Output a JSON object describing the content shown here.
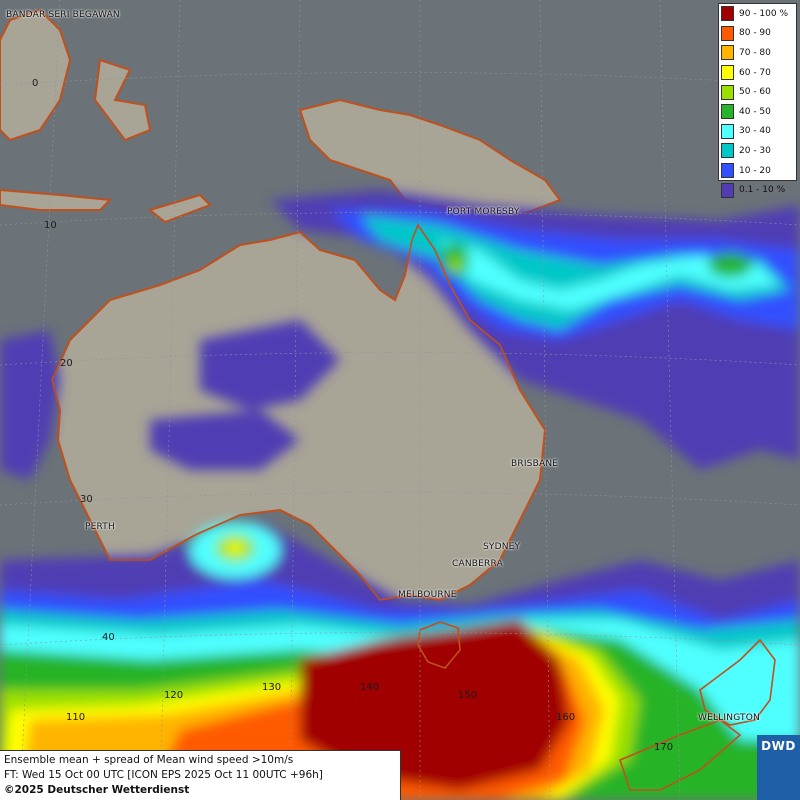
{
  "legend": {
    "items": [
      {
        "label": "90 - 100 %",
        "color": "#a00000"
      },
      {
        "label": "80 - 90",
        "color": "#ff5a00"
      },
      {
        "label": "70 - 80",
        "color": "#ffb400"
      },
      {
        "label": "60 - 70",
        "color": "#ffff00"
      },
      {
        "label": "50 - 60",
        "color": "#9be000"
      },
      {
        "label": "40 - 50",
        "color": "#28b428"
      },
      {
        "label": "30 - 40",
        "color": "#50ffff"
      },
      {
        "label": "20 - 30",
        "color": "#00c8c8"
      },
      {
        "label": "10 - 20",
        "color": "#3250ff"
      },
      {
        "label": "0.1 - 10 %",
        "color": "#503cb4"
      }
    ]
  },
  "cities": {
    "bandar": "BANDAR SERI BEGAWAN",
    "port_moresby": "PORT MORESBY",
    "brisbane": "BRISBANE",
    "perth": "PERTH",
    "sydney": "SYDNEY",
    "canberra": "CANBERRA",
    "melbourne": "MELBOURNE",
    "wellington": "WELLINGTON"
  },
  "grid_labels": {
    "lat_0": "0",
    "lat_10": "10",
    "lat_20": "20",
    "lat_30": "30",
    "lat_40": "40",
    "lon_110": "110",
    "lon_120": "120",
    "lon_130": "130",
    "lon_140": "140",
    "lon_150": "150",
    "lon_160": "160",
    "lon_170": "170"
  },
  "info": {
    "line1": "Ensemble mean + spread of Mean wind speed >10m/s",
    "line2": "FT: Wed 15 Oct 00 UTC [ICON EPS 2025 Oct 11 00UTC +96h]",
    "line3": "©2025 Deutscher Wetterdienst"
  },
  "logo": {
    "text": "DWD",
    "icon": "dwd-swirl-icon"
  },
  "colors": {
    "ocean": "#6b7378",
    "land": "#a8a496",
    "coast": "#c0501c"
  }
}
